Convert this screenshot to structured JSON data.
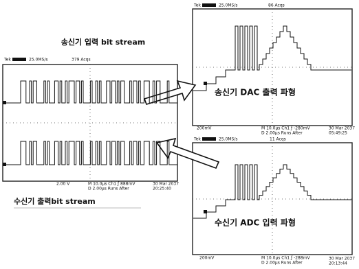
{
  "left_scope": {
    "title": "송신기 입력 bit stream",
    "header": [
      "Tek",
      "25.0MS/s",
      "379 Acqs"
    ],
    "footer": [
      "2.00 V",
      "M 10.0µs Ch1 ƒ 888mV",
      "D 2.00µs Runs After",
      "30 Mar 2037",
      "20:25:40"
    ],
    "caption": "수신기 출력bit stream"
  },
  "top_right_scope": {
    "header": [
      "Tek",
      "25.0MS/s",
      "86 Acqs"
    ],
    "label": "송신기 DAC 출력 파형",
    "footer": [
      "200mV",
      "M 10.0µs Ch1 ƒ -280mV",
      "D 2.00µs Runs After",
      "30 Mar 2037",
      "05:49:25"
    ]
  },
  "bottom_right_scope": {
    "header": [
      "Tek",
      "25.0MS/s",
      "11 Acqs"
    ],
    "label": "수신기 ADC 입력 파형",
    "footer": [
      "200mV",
      "M 10.0µs Ch1 ƒ -288mV",
      "D 2.00µs Runs After",
      "30 Mar 2037",
      "20:13:44"
    ]
  }
}
